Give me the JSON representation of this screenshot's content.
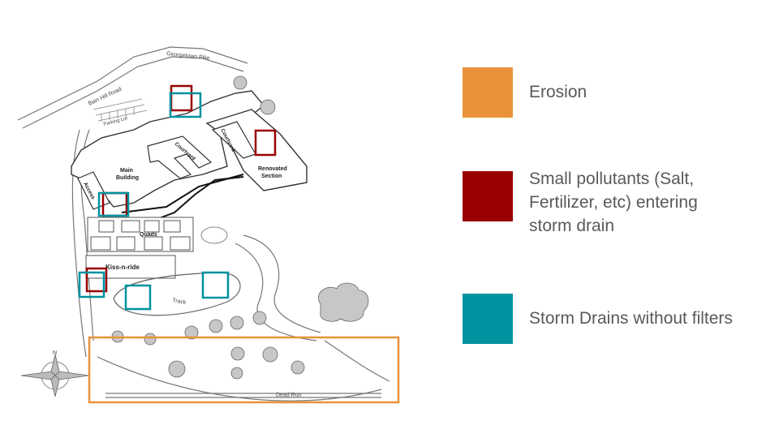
{
  "legend": {
    "erosion": {
      "label": "Erosion",
      "color": "#E8923A"
    },
    "pollutants": {
      "label": "Small pollutants (Salt,\nFertilizer, etc) entering\nstorm drain",
      "color": "#990000"
    },
    "drains": {
      "label": "Storm Drains without filters",
      "color": "#00929F"
    }
  },
  "map": {
    "road_georgetown": "Georgetown Pike",
    "road_bain_hill": "Bain Hill Road",
    "parking_lot": "Parking Lot",
    "main_building": "Main\nBuilding",
    "courtyard_main": "Courtyard",
    "courtyard_renovated": "Courtyard",
    "renovated_section": "Renovated\nSection",
    "access": "Access",
    "quads": "Quads",
    "kiss_n_ride": "Kiss-n-ride",
    "track": "Track",
    "road_dead_run": "Dead Run",
    "compass_n": "N"
  }
}
